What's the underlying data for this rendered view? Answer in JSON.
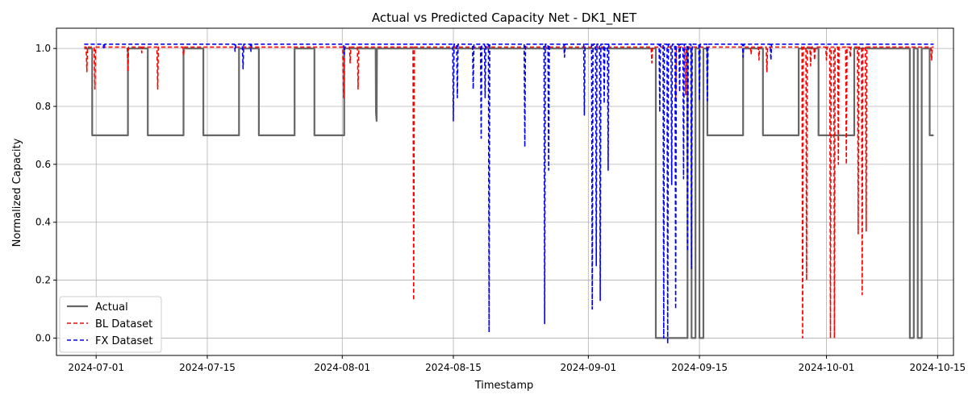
{
  "chart_data": {
    "type": "line",
    "title": "Actual vs Predicted Capacity Net - DK1_NET",
    "xlabel": "Timestamp",
    "ylabel": "Normalized Capacity",
    "xlim": [
      "2024-06-26",
      "2024-10-17"
    ],
    "ylim": [
      -0.06,
      1.07
    ],
    "grid": true,
    "legend_position": "lower-left",
    "x_ticks": [
      "2024-07-01",
      "2024-07-15",
      "2024-08-01",
      "2024-08-15",
      "2024-09-01",
      "2024-09-15",
      "2024-10-01",
      "2024-10-15"
    ],
    "y_ticks": [
      "0.0",
      "0.2",
      "0.4",
      "0.6",
      "0.8",
      "1.0"
    ],
    "series": [
      {
        "name": "Actual",
        "color": "#666666",
        "style": "solid",
        "points": [
          [
            "2024-06-29T12:00",
            1.0
          ],
          [
            "2024-06-30T12:00",
            1.0
          ],
          [
            "2024-06-30T12:01",
            0.7
          ],
          [
            "2024-07-05T00:00",
            0.7
          ],
          [
            "2024-07-05T00:01",
            1.0
          ],
          [
            "2024-07-07T12:00",
            1.0
          ],
          [
            "2024-07-07T12:01",
            0.7
          ],
          [
            "2024-07-12T00:00",
            0.7
          ],
          [
            "2024-07-12T00:01",
            1.0
          ],
          [
            "2024-07-14T12:00",
            1.0
          ],
          [
            "2024-07-14T12:01",
            0.7
          ],
          [
            "2024-07-19T00:00",
            0.7
          ],
          [
            "2024-07-19T00:01",
            1.0
          ],
          [
            "2024-07-21T12:00",
            1.0
          ],
          [
            "2024-07-21T12:01",
            0.7
          ],
          [
            "2024-07-26T00:00",
            0.7
          ],
          [
            "2024-07-26T00:01",
            1.0
          ],
          [
            "2024-07-28T12:00",
            1.0
          ],
          [
            "2024-07-28T12:01",
            0.7
          ],
          [
            "2024-08-01T06:00",
            0.7
          ],
          [
            "2024-08-01T06:01",
            1.0
          ],
          [
            "2024-08-05T05:00",
            1.0
          ],
          [
            "2024-08-05T06:00",
            0.78
          ],
          [
            "2024-08-05T08:00",
            0.75
          ],
          [
            "2024-08-05T09:00",
            1.0
          ],
          [
            "2024-09-09T12:00",
            1.0
          ],
          [
            "2024-09-09T12:01",
            0.0
          ],
          [
            "2024-09-13T12:00",
            0.0
          ],
          [
            "2024-09-13T12:01",
            1.0
          ],
          [
            "2024-09-14T00:00",
            1.0
          ],
          [
            "2024-09-14T00:01",
            0.0
          ],
          [
            "2024-09-14T12:00",
            0.0
          ],
          [
            "2024-09-14T12:01",
            1.0
          ],
          [
            "2024-09-15T00:00",
            1.0
          ],
          [
            "2024-09-15T00:01",
            0.0
          ],
          [
            "2024-09-15T12:00",
            0.0
          ],
          [
            "2024-09-15T12:01",
            1.0
          ],
          [
            "2024-09-16T00:00",
            1.0
          ],
          [
            "2024-09-16T00:01",
            0.7
          ],
          [
            "2024-09-20T12:00",
            0.7
          ],
          [
            "2024-09-20T12:01",
            1.0
          ],
          [
            "2024-09-23T00:00",
            1.0
          ],
          [
            "2024-09-23T00:01",
            0.7
          ],
          [
            "2024-09-27T12:00",
            0.7
          ],
          [
            "2024-09-27T12:01",
            1.0
          ],
          [
            "2024-09-30T00:00",
            1.0
          ],
          [
            "2024-09-30T00:01",
            0.7
          ],
          [
            "2024-10-04T12:00",
            0.7
          ],
          [
            "2024-10-04T12:01",
            1.0
          ],
          [
            "2024-10-11T12:00",
            1.0
          ],
          [
            "2024-10-11T12:01",
            0.0
          ],
          [
            "2024-10-12T00:00",
            0.0
          ],
          [
            "2024-10-12T00:01",
            1.0
          ],
          [
            "2024-10-12T12:00",
            1.0
          ],
          [
            "2024-10-12T12:01",
            0.0
          ],
          [
            "2024-10-13T00:00",
            0.0
          ],
          [
            "2024-10-13T00:01",
            1.0
          ],
          [
            "2024-10-14T00:00",
            1.0
          ],
          [
            "2024-10-14T00:01",
            0.7
          ],
          [
            "2024-10-14T12:00",
            0.7
          ]
        ]
      },
      {
        "name": "BL Dataset",
        "color": "#ff0000",
        "style": "dashed",
        "base": 1.005,
        "start": "2024-06-29T12:00",
        "end": "2024-10-14T12:00",
        "dips": [
          [
            "2024-06-29T20:00",
            0.92
          ],
          [
            "2024-06-30T20:00",
            0.86
          ],
          [
            "2024-07-05T00:00",
            0.92
          ],
          [
            "2024-07-06T18:00",
            0.985
          ],
          [
            "2024-07-08T18:00",
            0.86
          ],
          [
            "2024-07-12T00:00",
            0.975
          ],
          [
            "2024-08-01T04:00",
            0.83
          ],
          [
            "2024-08-02T00:00",
            0.95
          ],
          [
            "2024-08-03T00:00",
            0.86
          ],
          [
            "2024-08-10T00:00",
            0.13
          ],
          [
            "2024-09-09T00:00",
            0.95
          ],
          [
            "2024-09-12T00:00",
            0.82
          ],
          [
            "2024-09-13T06:00",
            0.84
          ],
          [
            "2024-09-21T12:00",
            0.98
          ],
          [
            "2024-09-22T12:00",
            0.96
          ],
          [
            "2024-09-23T12:00",
            0.92
          ],
          [
            "2024-09-28T00:00",
            0.0
          ],
          [
            "2024-09-28T12:00",
            0.2
          ],
          [
            "2024-09-29T00:00",
            0.94
          ],
          [
            "2024-09-29T12:00",
            0.96
          ],
          [
            "2024-10-01T00:00",
            0.96
          ],
          [
            "2024-10-01T12:00",
            0.0
          ],
          [
            "2024-10-02T00:00",
            0.0
          ],
          [
            "2024-10-02T12:00",
            0.6
          ],
          [
            "2024-10-03T12:00",
            0.6
          ],
          [
            "2024-10-04T00:00",
            0.97
          ],
          [
            "2024-10-05T00:00",
            0.36
          ],
          [
            "2024-10-05T12:00",
            0.15
          ],
          [
            "2024-10-06T00:00",
            0.37
          ],
          [
            "2024-10-14T06:00",
            0.96
          ]
        ]
      },
      {
        "name": "FX Dataset",
        "color": "#0000ff",
        "style": "dashed",
        "base": 1.015,
        "start": "2024-06-29T12:00",
        "end": "2024-10-14T12:00",
        "dips": [
          [
            "2024-07-02T00:00",
            1.0
          ],
          [
            "2024-07-18T12:00",
            0.99
          ],
          [
            "2024-07-19T12:00",
            0.93
          ],
          [
            "2024-07-20T12:00",
            0.99
          ],
          [
            "2024-08-01T06:00",
            0.98
          ],
          [
            "2024-08-15T00:00",
            0.75
          ],
          [
            "2024-08-15T12:00",
            0.83
          ],
          [
            "2024-08-17T12:00",
            0.86
          ],
          [
            "2024-08-18T12:00",
            0.69
          ],
          [
            "2024-08-19T00:00",
            0.83
          ],
          [
            "2024-08-19T12:00",
            0.02
          ],
          [
            "2024-08-24T00:00",
            0.66
          ],
          [
            "2024-08-26T12:00",
            0.05
          ],
          [
            "2024-08-27T00:00",
            0.58
          ],
          [
            "2024-08-29T00:00",
            0.97
          ],
          [
            "2024-08-31T12:00",
            0.77
          ],
          [
            "2024-09-01T12:00",
            0.1
          ],
          [
            "2024-09-02T00:00",
            0.25
          ],
          [
            "2024-09-02T12:00",
            0.13
          ],
          [
            "2024-09-03T00:00",
            0.81
          ],
          [
            "2024-09-03T12:00",
            0.58
          ],
          [
            "2024-09-10T00:00",
            0.78
          ],
          [
            "2024-09-10T12:00",
            0.0
          ],
          [
            "2024-09-11T00:00",
            -0.02
          ],
          [
            "2024-09-11T12:00",
            0.53
          ],
          [
            "2024-09-12T00:00",
            0.1
          ],
          [
            "2024-09-12T12:00",
            0.85
          ],
          [
            "2024-09-13T00:00",
            0.55
          ],
          [
            "2024-09-13T12:00",
            0.3
          ],
          [
            "2024-09-14T00:00",
            0.24
          ],
          [
            "2024-09-15T00:00",
            0.82
          ],
          [
            "2024-09-16T00:00",
            0.82
          ],
          [
            "2024-09-20T12:00",
            0.97
          ],
          [
            "2024-09-24T00:00",
            0.96
          ]
        ]
      }
    ]
  }
}
